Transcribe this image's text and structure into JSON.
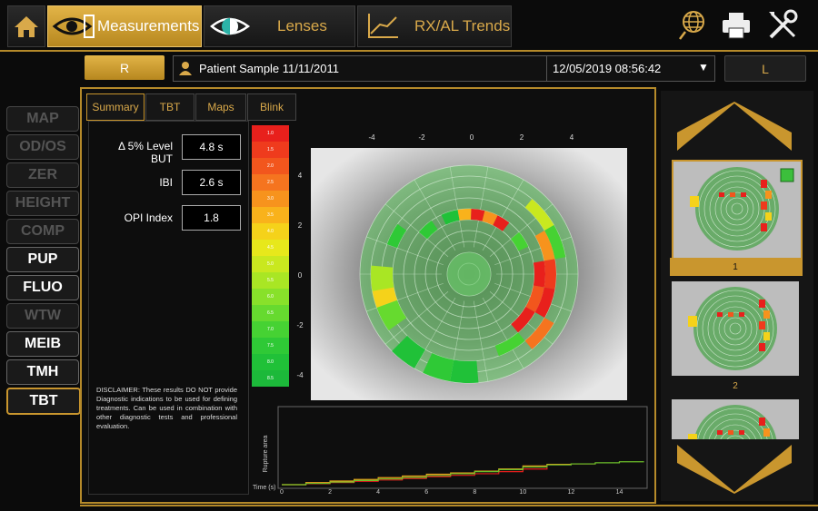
{
  "toolbar": {
    "home_icon": "home-icon",
    "tabs": [
      {
        "label": "Measurements",
        "icon": "eye-measure-icon"
      },
      {
        "label": "Lenses",
        "icon": "lens-icon"
      },
      {
        "label": "RX/AL Trends",
        "icon": "trend-chart-icon"
      }
    ],
    "right_icons": [
      "globe-icon",
      "printer-icon",
      "tools-icon"
    ]
  },
  "patient_bar": {
    "right_eye": "R",
    "left_eye": "L",
    "patient_name": "Patient Sample 11/11/2011",
    "exam_datetime": "12/05/2019 08:56:42"
  },
  "left_nav": [
    {
      "label": "MAP",
      "state": "disabled"
    },
    {
      "label": "OD/OS",
      "state": "disabled"
    },
    {
      "label": "ZER",
      "state": "disabled"
    },
    {
      "label": "HEIGHT",
      "state": "disabled"
    },
    {
      "label": "COMP",
      "state": "disabled"
    },
    {
      "label": "PUP",
      "state": "enabled"
    },
    {
      "label": "FLUO",
      "state": "enabled"
    },
    {
      "label": "WTW",
      "state": "disabled"
    },
    {
      "label": "MEIB",
      "state": "enabled"
    },
    {
      "label": "TMH",
      "state": "enabled"
    },
    {
      "label": "TBT",
      "state": "selected"
    }
  ],
  "sub_tabs": [
    "Summary",
    "TBT",
    "Maps",
    "Blink"
  ],
  "summary": {
    "metrics": [
      {
        "label": "Δ 5% Level BUT",
        "value": "4.8 s"
      },
      {
        "label": "IBI",
        "value": "2.6 s"
      },
      {
        "label": "OPI Index",
        "value": "1.8"
      }
    ],
    "disclaimer": "DISCLAIMER: These results DO NOT provide Diagnostic indications to be used for defining treatments. Can be used in combination with other diagnostic tests and professional evaluation."
  },
  "colors": {
    "accent": "#c9962e",
    "scale": [
      "#e8201c",
      "#ef3b1d",
      "#f2561d",
      "#f5741f",
      "#f7931d",
      "#f9b21b",
      "#f5d21a",
      "#e7e81b",
      "#c9e81f",
      "#a9e624",
      "#88e12a",
      "#66da2f",
      "#46d233",
      "#2fc936",
      "#20c138",
      "#1cb93a"
    ]
  },
  "scale_labels": [
    "1.0",
    "1.5",
    "2.0",
    "2.5",
    "3.0",
    "3.5",
    "4.0",
    "4.5",
    "5.0",
    "5.5",
    "6.0",
    "6.5",
    "7.0",
    "7.5",
    "8.0",
    "8.5"
  ],
  "map_axis": {
    "x_ticks": [
      "-4",
      "-2",
      "0",
      "2",
      "4"
    ],
    "y_ticks": [
      "4",
      "2",
      "0",
      "-2",
      "-4"
    ]
  },
  "chart_data": {
    "type": "line",
    "x_ticks": [
      "0",
      "2",
      "4",
      "6",
      "8",
      "10",
      "12",
      "14"
    ],
    "y_label": "Rupture area",
    "x_label": "Time (s)",
    "xlim": [
      0,
      15
    ],
    "series": [
      {
        "color": "#e21c1c",
        "x": [
          0,
          1,
          2,
          3,
          4,
          5,
          6,
          7,
          8,
          9,
          10,
          11
        ],
        "y": [
          0,
          0.04,
          0.08,
          0.13,
          0.18,
          0.24,
          0.31,
          0.36,
          0.42,
          0.5,
          0.6,
          0.66
        ]
      },
      {
        "color": "#f0a01c",
        "x": [
          0,
          1,
          2,
          3,
          4,
          5,
          6,
          7,
          8,
          9,
          10,
          11,
          12,
          13
        ],
        "y": [
          0,
          0.08,
          0.14,
          0.2,
          0.27,
          0.33,
          0.4,
          0.45,
          0.52,
          0.6,
          0.72,
          0.78,
          0.8,
          0.82
        ]
      },
      {
        "color": "#6cbf2a",
        "x": [
          0,
          1,
          2,
          3,
          4,
          5,
          6,
          7,
          8,
          9,
          10,
          11,
          12,
          13,
          14,
          15
        ],
        "y": [
          0,
          0.05,
          0.1,
          0.16,
          0.22,
          0.28,
          0.35,
          0.42,
          0.5,
          0.58,
          0.68,
          0.76,
          0.8,
          0.84,
          0.88,
          0.9
        ]
      }
    ]
  },
  "thumbnails": [
    {
      "label": "1",
      "selected": true
    },
    {
      "label": "2",
      "selected": false
    },
    {
      "label": "",
      "selected": false
    }
  ]
}
